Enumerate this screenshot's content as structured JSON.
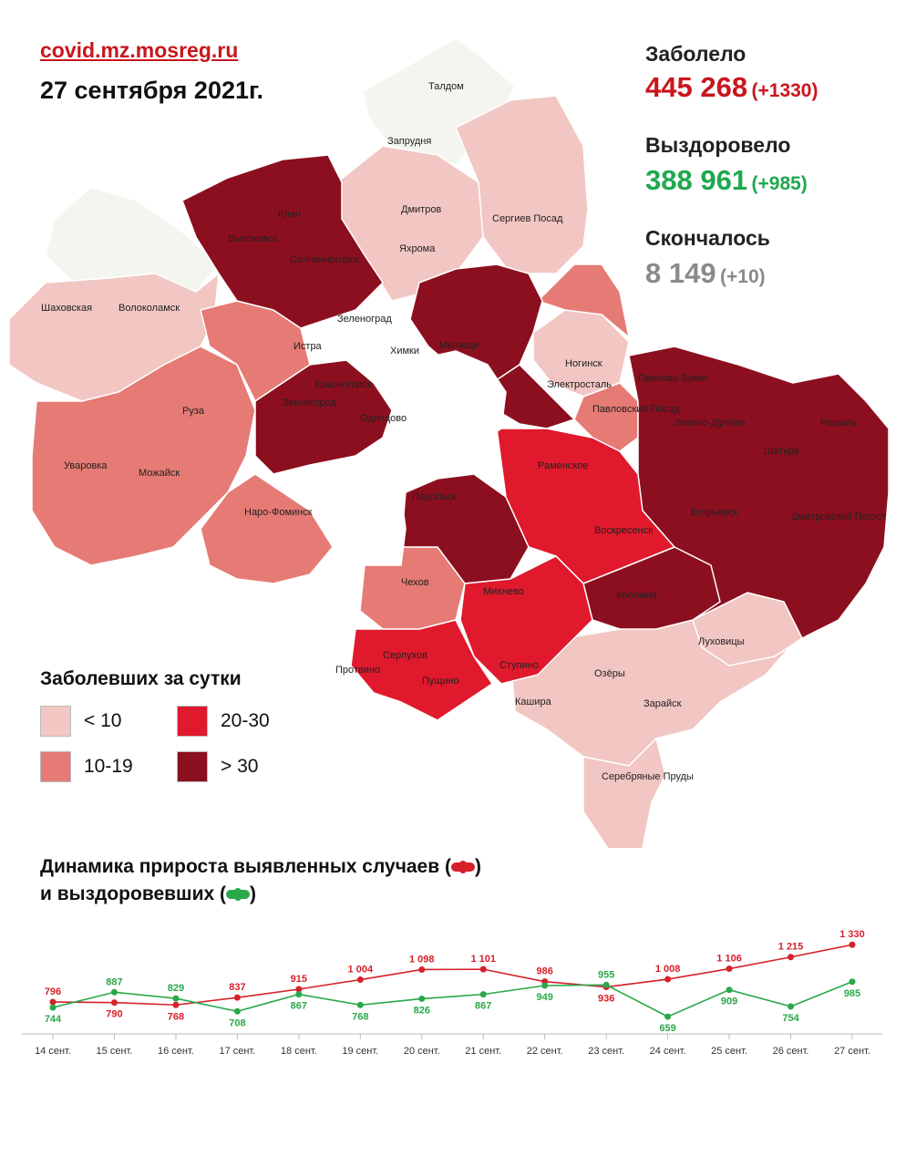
{
  "header": {
    "site": "covid.mz.mosreg.ru",
    "date": "27 сентября 2021г."
  },
  "stats": {
    "infected": {
      "label": "Заболело",
      "value": "445 268",
      "delta": "(+1330)",
      "color": "#c8161d"
    },
    "recovered": {
      "label": "Выздоровело",
      "value": "388 961",
      "delta": "(+985)",
      "color": "#1fa84f"
    },
    "died": {
      "label": "Скончалось",
      "value": "8 149",
      "delta": "(+10)",
      "color": "#8a8a8a"
    }
  },
  "map": {
    "colors": {
      "lt10": "#f2c6c2",
      "10-19": "#e67a74",
      "20-30": "#e0192d",
      "gt30": "#8c0f1f",
      "none": "#f3f6ee"
    },
    "towns": [
      "Талдом",
      "Запрудня",
      "Клин",
      "Высоковск",
      "Дмитров",
      "Сергиев Посад",
      "Яхрома",
      "Солнечногорск",
      "Шаховская",
      "Волоколамск",
      "Зеленоград",
      "Истра",
      "Химки",
      "Мытищи",
      "Ногинск",
      "Красногорск",
      "Электросталь",
      "Орехово-Зуево",
      "Звенигород",
      "Одинцово",
      "Павловский Посад",
      "Ликино-Дулёво",
      "Рошаль",
      "Руза",
      "Раменское",
      "Шатура",
      "Уваровка",
      "Можайск",
      "Подольск",
      "Наро-Фоминск",
      "Егорьевск",
      "Воскресенск",
      "Дмитровский Погост",
      "Чехов",
      "Михнево",
      "Коломна",
      "Серпухов",
      "Протвино",
      "Пущино",
      "Ступино",
      "Луховицы",
      "Озёры",
      "Кашира",
      "Зарайск",
      "Серебряные Пруды"
    ]
  },
  "legend": {
    "title": "Заболевших за сутки",
    "items": [
      {
        "label": "< 10",
        "color": "#f2c6c2"
      },
      {
        "label": "20-30",
        "color": "#e0192d"
      },
      {
        "label": "10-19",
        "color": "#e67a74"
      },
      {
        "label": "> 30",
        "color": "#8c0f1f"
      }
    ]
  },
  "dynamics": {
    "title_line1_a": "Динамика прироста выявленных случаев (",
    "title_line1_b": ")",
    "title_line2_a": "и выздоровевших (",
    "title_line2_b": ")"
  },
  "chart_data": {
    "type": "line",
    "categories": [
      "14 сент.",
      "15 сент.",
      "16 сент.",
      "17 сент.",
      "18 сент.",
      "19 сент.",
      "20 сент.",
      "21 сент.",
      "22 сент.",
      "23 сент.",
      "24 сент.",
      "25 сент.",
      "26 сент.",
      "27 сент."
    ],
    "series": [
      {
        "color": "#d6202a",
        "values": [
          796,
          790,
          768,
          837,
          915,
          1004,
          1098,
          1101,
          986,
          936,
          1008,
          1106,
          1215,
          1330
        ],
        "labels": [
          "796",
          "790",
          "768",
          "837",
          "915",
          "1 004",
          "1 098",
          "1 101",
          "986",
          "936",
          "1 008",
          "1 106",
          "1 215",
          "1 330"
        ]
      },
      {
        "color": "#2aa84a",
        "values": [
          744,
          887,
          829,
          708,
          867,
          768,
          826,
          867,
          949,
          955,
          659,
          909,
          754,
          985
        ],
        "labels": [
          "744",
          "887",
          "829",
          "708",
          "867",
          "768",
          "826",
          "867",
          "949",
          "955",
          "659",
          "909",
          "754",
          "985"
        ]
      }
    ]
  }
}
